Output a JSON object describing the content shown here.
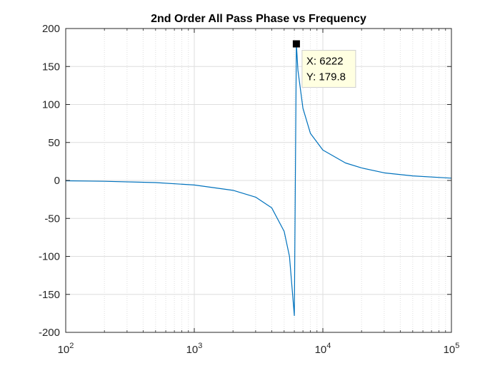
{
  "chart_data": {
    "type": "line",
    "title": "2nd Order All Pass Phase vs Frequency",
    "xlabel": "",
    "ylabel": "",
    "x_scale": "log",
    "xlim": [
      100,
      100000
    ],
    "ylim": [
      -200,
      200
    ],
    "grid": true,
    "minor_grid": true,
    "x_ticks": [
      100,
      1000,
      10000,
      100000
    ],
    "x_tick_labels": [
      {
        "base": "10",
        "exp": "2"
      },
      {
        "base": "10",
        "exp": "3"
      },
      {
        "base": "10",
        "exp": "4"
      },
      {
        "base": "10",
        "exp": "5"
      }
    ],
    "y_ticks": [
      200,
      150,
      100,
      50,
      0,
      -50,
      -100,
      -150,
      -200
    ],
    "y_tick_labels": [
      "200",
      "150",
      "100",
      "50",
      "0",
      "-50",
      "-100",
      "-150",
      "-200"
    ],
    "series": [
      {
        "color": "#0072BD",
        "x": [
          100,
          200,
          500,
          1000,
          2000,
          3000,
          4000,
          5000,
          5500,
          6000,
          6222,
          6400,
          7000,
          8000,
          10000,
          15000,
          20000,
          30000,
          50000,
          100000
        ],
        "y": [
          -0.5,
          -1.1,
          -2.8,
          -6,
          -13,
          -22,
          -36,
          -67,
          -100,
          -178,
          179.8,
          145,
          95,
          62,
          40,
          23,
          16.5,
          10,
          6,
          3
        ]
      }
    ],
    "datatip": {
      "x": 6222,
      "y": 179.8,
      "x_text": "X: 6222",
      "y_text": "Y: 179.8"
    }
  },
  "colors": {
    "line": "#0072BD",
    "grid": "#dedede",
    "axes": "#262626",
    "tip_background": "#ffffe1"
  }
}
